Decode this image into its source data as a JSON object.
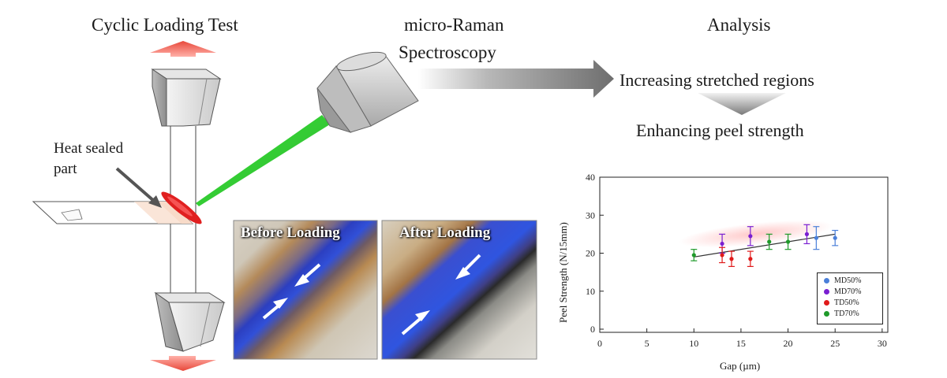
{
  "titles": {
    "cyclic": "Cyclic Loading Test",
    "raman_line1": "micro-Raman",
    "raman_line2": "Spectroscopy",
    "analysis": "Analysis",
    "step1": "Increasing stretched regions",
    "step2": "Enhancing peel strength"
  },
  "callout": {
    "line1": "Heat sealed",
    "line2": "part"
  },
  "photos": {
    "before": "Before Loading",
    "after": "After Loading"
  },
  "colors": {
    "laser": "#22cc22",
    "load_arrow": "#e8483a",
    "seal": "#e02020",
    "MD50": "#4a7fd9",
    "MD70": "#7a1fd1",
    "TD50": "#e01a1a",
    "TD70": "#1f9a2a"
  },
  "chart_data": {
    "type": "scatter",
    "xlabel": "Gap (µm)",
    "ylabel": "Peel Strength (N/15mm)",
    "xlim": [
      0,
      30
    ],
    "ylim": [
      0,
      40
    ],
    "xticks": [
      0,
      5,
      10,
      15,
      20,
      25,
      30
    ],
    "yticks": [
      0,
      10,
      20,
      30,
      40
    ],
    "legend_position": "bottom-right",
    "series": [
      {
        "name": "MD50%",
        "color": "#4a7fd9",
        "x": [
          23,
          25
        ],
        "y": [
          24,
          24
        ],
        "err": [
          3,
          2
        ]
      },
      {
        "name": "MD70%",
        "color": "#7a1fd1",
        "x": [
          13,
          16,
          22
        ],
        "y": [
          22.5,
          24.5,
          25
        ],
        "err": [
          2.5,
          2.5,
          2.5
        ]
      },
      {
        "name": "TD50%",
        "color": "#e01a1a",
        "x": [
          13,
          14,
          16
        ],
        "y": [
          19.5,
          18.5,
          18.5
        ],
        "err": [
          2,
          2,
          2
        ]
      },
      {
        "name": "TD70%",
        "color": "#1f9a2a",
        "x": [
          10,
          18,
          20
        ],
        "y": [
          19.5,
          23,
          23
        ],
        "err": [
          1.5,
          2,
          2
        ]
      }
    ],
    "trend": {
      "x": [
        10,
        25
      ],
      "y": [
        19,
        25
      ]
    }
  }
}
